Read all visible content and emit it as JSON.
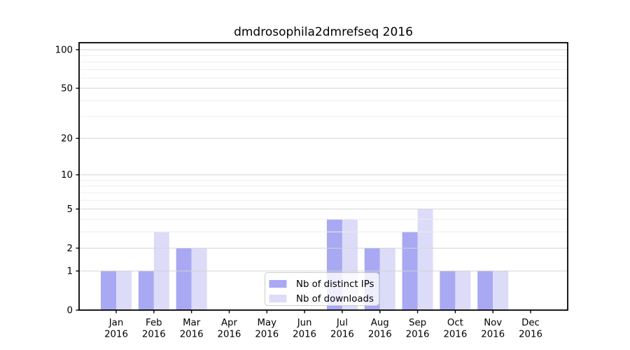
{
  "figure": {
    "title": "dmdrosophila2dmrefseq 2016"
  },
  "chart_data": {
    "type": "bar",
    "title": "dmdrosophila2dmrefseq 2016",
    "categories": [
      "Jan 2016",
      "Feb 2016",
      "Mar 2016",
      "Apr 2016",
      "May 2016",
      "Jun 2016",
      "Jul 2016",
      "Aug 2016",
      "Sep 2016",
      "Oct 2016",
      "Nov 2016",
      "Dec 2016"
    ],
    "series": [
      {
        "name": "Nb of distinct IPs",
        "color": "#a8a8f3",
        "values": [
          1,
          1,
          2,
          0,
          0,
          0,
          4,
          2,
          3,
          1,
          1,
          0
        ]
      },
      {
        "name": "Nb of downloads",
        "color": "#dcdcf9",
        "values": [
          1,
          3,
          2,
          0,
          0,
          0,
          4,
          2,
          5,
          1,
          1,
          0
        ]
      }
    ],
    "xlabel": "",
    "ylabel": "",
    "y_axis": {
      "scale": "log1p",
      "ticks": [
        0,
        1,
        2,
        5,
        10,
        20,
        50,
        100
      ],
      "minor_ticks": [
        3,
        4,
        6,
        7,
        8,
        9,
        30,
        40,
        60,
        70,
        80,
        90
      ],
      "lim": [
        0,
        100
      ]
    },
    "grid": true,
    "grid_over_bars": true,
    "legend": {
      "position": "lower center",
      "labels": [
        "Nb of distinct IPs",
        "Nb of downloads"
      ]
    }
  },
  "colors": {
    "background": "#ffffff",
    "bar_distinct_ips": "#a8a8f3",
    "bar_downloads": "#dcdcf9",
    "grid_major": "#d3d3d3",
    "grid_minor": "#ededed",
    "axis_spine": "#000000",
    "legend_border": "#cccccc",
    "legend_fill": "#ffffff"
  }
}
